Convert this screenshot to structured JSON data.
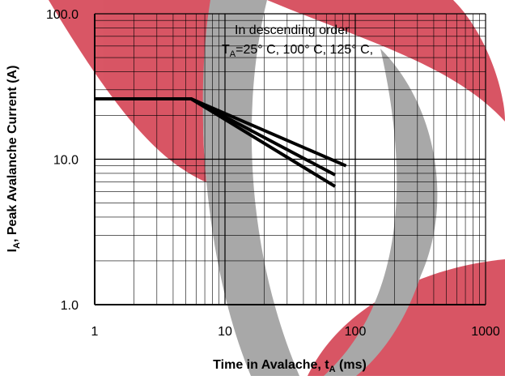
{
  "chart_data": {
    "type": "line",
    "xlabel": {
      "main": "Time in Avalache, t",
      "sub": "A",
      "rest": " (ms)"
    },
    "ylabel": {
      "main": "I",
      "sub": "A",
      "rest": ", Peak Avalanche Current (A)"
    },
    "annotation": {
      "line1": "In descending order",
      "main": "T",
      "sub": "A",
      "rest": "=25°  C, 100°  C, 125°  C,"
    },
    "x_log": true,
    "y_log": true,
    "grid": true,
    "minor_grid": true,
    "xlim": [
      1,
      1000
    ],
    "xticks": [
      1,
      10,
      100,
      1000
    ],
    "ylim": [
      1,
      100
    ],
    "yticks": [
      {
        "value": 1,
        "label": "1.0"
      },
      {
        "value": 10,
        "label": "10.0"
      },
      {
        "value": 100,
        "label": "100.0"
      }
    ],
    "series": [
      {
        "color": "#000000",
        "x": [
          1,
          5.5,
          85
        ],
        "values": [
          26,
          26,
          9
        ]
      },
      {
        "color": "#000000",
        "x": [
          1,
          5.5,
          70
        ],
        "values": [
          26,
          26,
          7.8
        ]
      },
      {
        "color": "#000000",
        "x": [
          1,
          5.5,
          70
        ],
        "values": [
          26,
          26,
          6.5
        ]
      }
    ]
  }
}
